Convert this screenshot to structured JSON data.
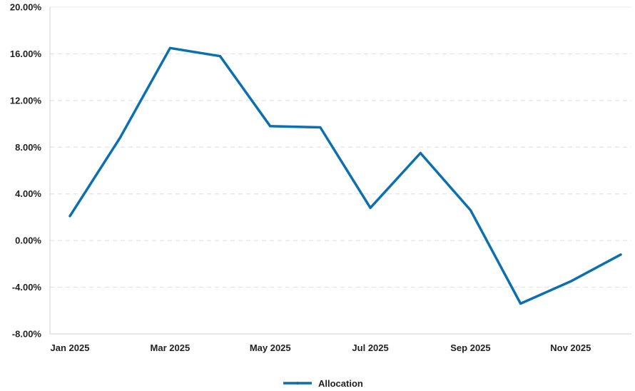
{
  "chart_data": {
    "type": "line",
    "x": [
      "Jan 2025",
      "Feb 2025",
      "Mar 2025",
      "Apr 2025",
      "May 2025",
      "Jun 2025",
      "Jul 2025",
      "Aug 2025",
      "Sep 2025",
      "Oct 2025",
      "Nov 2025",
      "Dec 2025"
    ],
    "x_tick_labels": [
      "Jan 2025",
      "Mar 2025",
      "May 2025",
      "Jul 2025",
      "Sep 2025",
      "Nov 2025"
    ],
    "series": [
      {
        "name": "Allocation",
        "color": "#0b6fb0",
        "values": [
          2.1,
          8.8,
          16.5,
          15.8,
          9.8,
          9.7,
          2.8,
          7.5,
          2.6,
          -5.4,
          -3.5,
          -1.2
        ]
      }
    ],
    "y_ticks": [
      "20.00%",
      "16.00%",
      "12.00%",
      "8.00%",
      "4.00%",
      "0.00%",
      "-4.00%",
      "-8.00%"
    ],
    "ylim": [
      -8,
      20
    ],
    "y_step": 4,
    "grid": "horizontal-dashed",
    "legend_position": "bottom-center",
    "title": "",
    "xlabel": "",
    "ylabel": ""
  }
}
